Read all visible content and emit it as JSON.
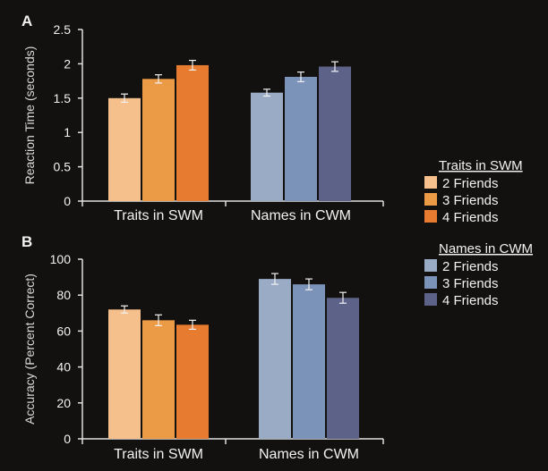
{
  "figure": {
    "legend_traits_title": "Traits in SWM",
    "legend_names_title": "Names in CWM"
  },
  "chart_data": [
    {
      "type": "bar",
      "panel_label": "A",
      "ylabel": "Reaction Time (seconds)",
      "ylim": [
        0,
        2.5
      ],
      "yticks": [
        "0",
        "0.5",
        "1",
        "1.5",
        "2",
        "2.5"
      ],
      "categories": [
        "Traits in SWM",
        "Names in CWM"
      ],
      "series": [
        {
          "name": "2 Friends",
          "values": [
            1.5,
            1.58
          ],
          "errors": [
            0.06,
            0.05
          ],
          "colors": [
            "#f6c08c",
            "#9aabc6"
          ]
        },
        {
          "name": "3 Friends",
          "values": [
            1.78,
            1.81
          ],
          "errors": [
            0.06,
            0.07
          ],
          "colors": [
            "#eb9a45",
            "#7b93b8"
          ]
        },
        {
          "name": "4 Friends",
          "values": [
            1.98,
            1.96
          ],
          "errors": [
            0.07,
            0.07
          ],
          "colors": [
            "#e77c30",
            "#5d6288"
          ]
        }
      ],
      "grid": false,
      "legend": "right"
    },
    {
      "type": "bar",
      "panel_label": "B",
      "ylabel": "Accuracy (Percent Correct)",
      "ylim": [
        0,
        100
      ],
      "yticks": [
        "0",
        "20",
        "40",
        "60",
        "80",
        "100"
      ],
      "categories": [
        "Traits in SWM",
        "Names in CWM"
      ],
      "series": [
        {
          "name": "2 Friends",
          "values": [
            72,
            89
          ],
          "errors": [
            2,
            3
          ],
          "colors": [
            "#f6c08c",
            "#9aabc6"
          ]
        },
        {
          "name": "3 Friends",
          "values": [
            66,
            86
          ],
          "errors": [
            3,
            3
          ],
          "colors": [
            "#eb9a45",
            "#7b93b8"
          ]
        },
        {
          "name": "4 Friends",
          "values": [
            63.5,
            78.5
          ],
          "errors": [
            2.5,
            3
          ],
          "colors": [
            "#e77c30",
            "#5d6288"
          ]
        }
      ],
      "grid": false,
      "legend": "right"
    }
  ]
}
